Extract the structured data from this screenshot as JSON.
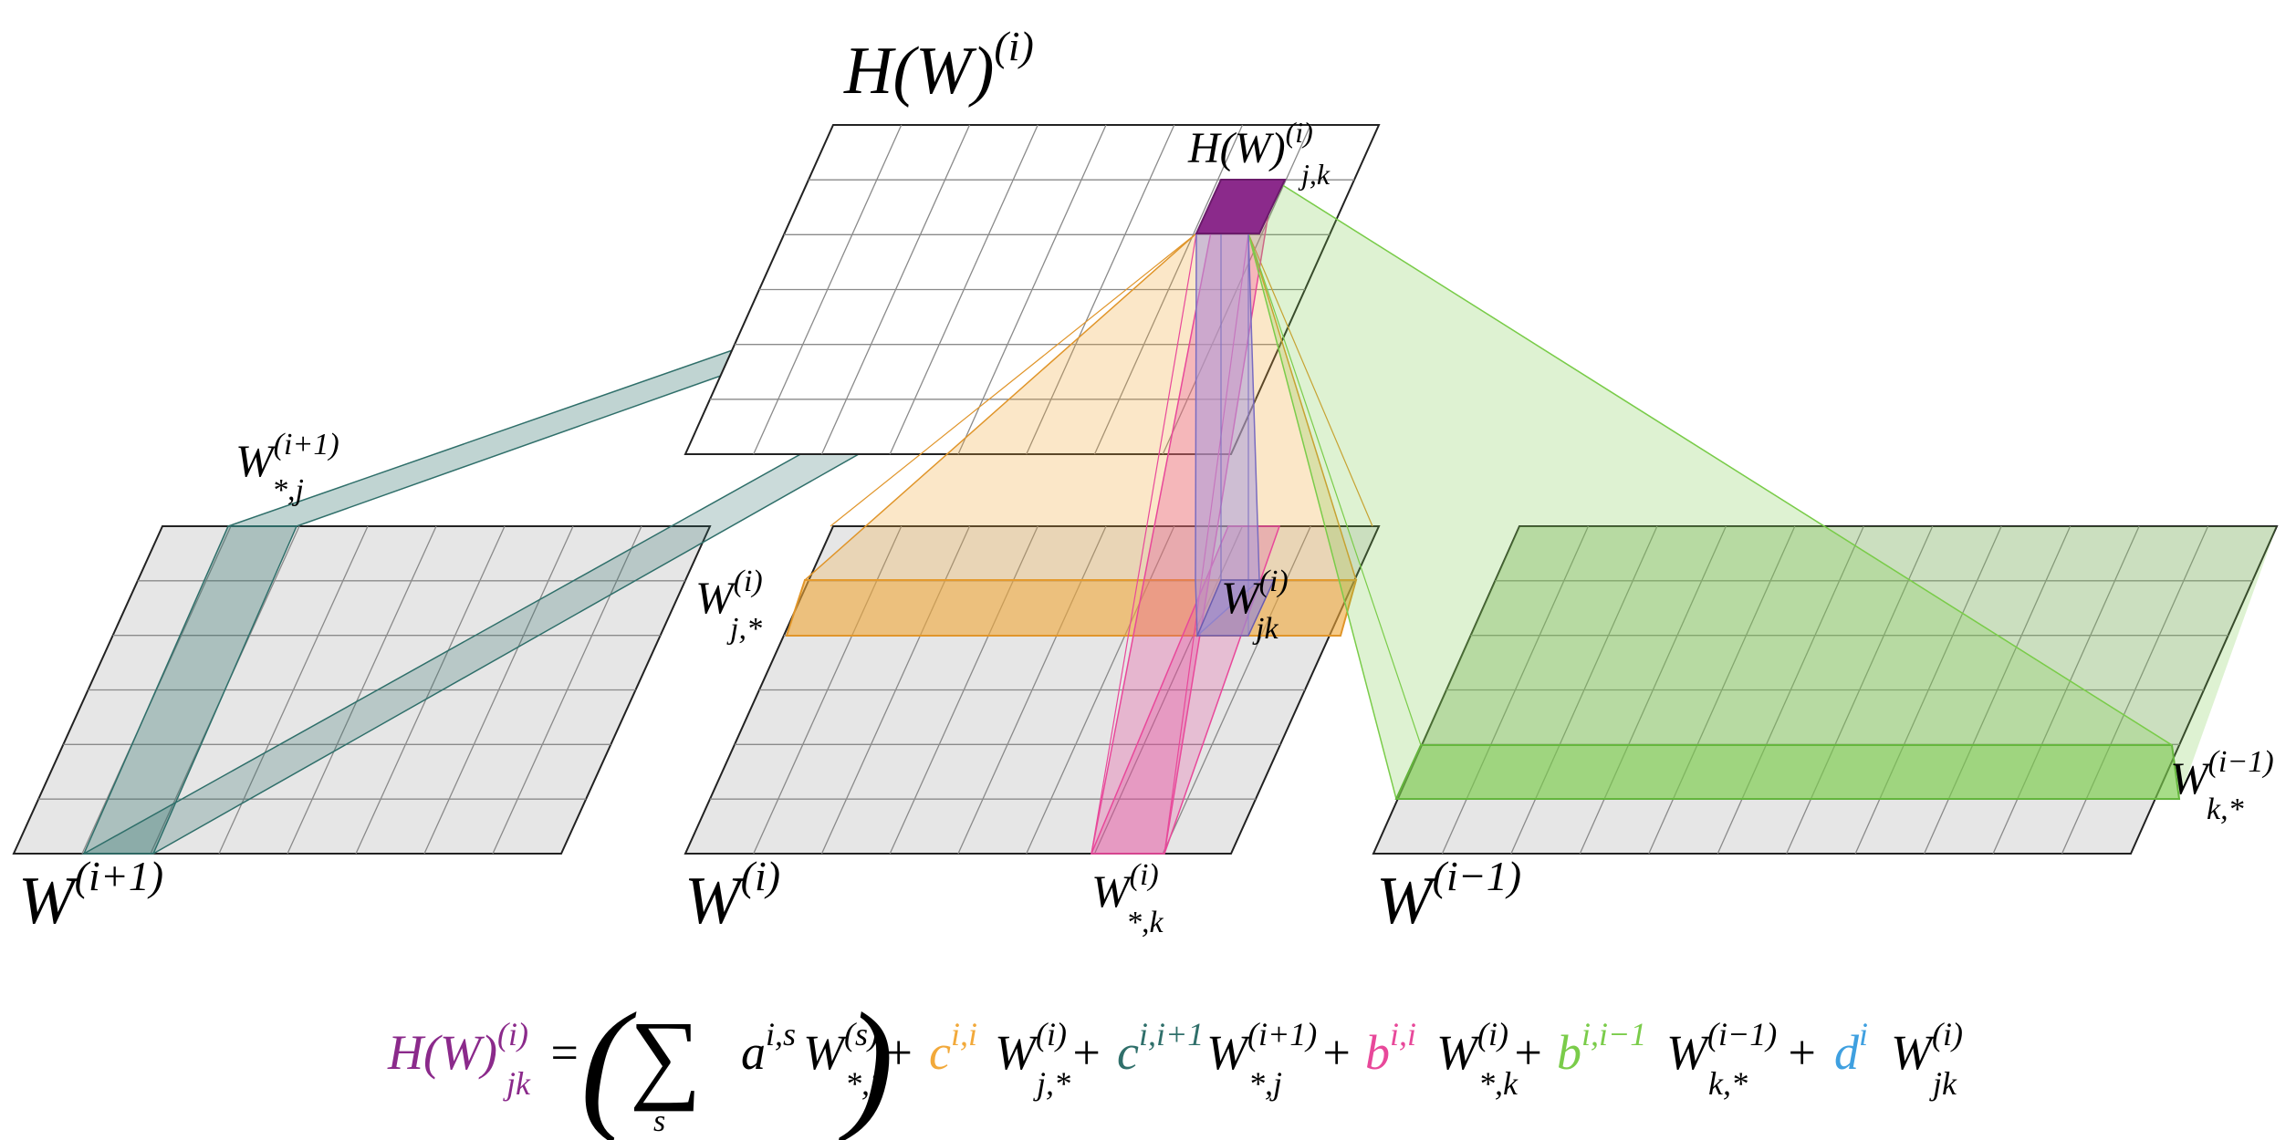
{
  "colors": {
    "grid_fill": "#e6e6e6",
    "grid_line": "#7a7a7a",
    "purple": "#8b2a8b",
    "orange": "#f2a93a",
    "teal": "#2f6f6a",
    "pink": "#e8489a",
    "green": "#7acc4a",
    "blue": "#3fa0e0",
    "lavender": "#aa9cdc"
  },
  "labels": {
    "top_matrix": {
      "base": "H(W)",
      "sup": "(i)"
    },
    "top_cell": {
      "base": "H(W)",
      "sup": "(i)",
      "sub": "j,k"
    },
    "left_matrix": {
      "base": "W",
      "sup": "(i+1)"
    },
    "mid_matrix": {
      "base": "W",
      "sup": "(i)"
    },
    "right_matrix": {
      "base": "W",
      "sup": "(i−1)"
    },
    "left_col": {
      "base": "W",
      "sup": "(i+1)",
      "sub": "*,j"
    },
    "mid_row": {
      "base": "W",
      "sup": "(i)",
      "sub": "j,*"
    },
    "mid_cell": {
      "base": "W",
      "sup": "(i)",
      "sub": "jk"
    },
    "mid_col": {
      "base": "W",
      "sup": "(i)",
      "sub": "*,k"
    },
    "right_row": {
      "base": "W",
      "sup": "(i−1)",
      "sub": "k,*"
    }
  },
  "equation": {
    "lhs": {
      "base": "H(W)",
      "sup": "(i)",
      "sub": "jk"
    },
    "equals": "=",
    "open_paren": "(",
    "close_paren": ")",
    "sigma": "∑",
    "sigma_sub": "s",
    "sum_coef": {
      "base": "a",
      "sup": "i,s"
    },
    "sum_term": {
      "base": "W",
      "sup": "(s)",
      "sub": "*,*"
    },
    "plus": "+",
    "t1_coef": {
      "base": "c",
      "sup": "i,i"
    },
    "t1_term": {
      "base": "W",
      "sup": "(i)",
      "sub": "j,*"
    },
    "t2_coef": {
      "base": "c",
      "sup": "i,i+1"
    },
    "t2_term": {
      "base": "W",
      "sup": "(i+1)",
      "sub": "*,j"
    },
    "t3_coef": {
      "base": "b",
      "sup": "i,i"
    },
    "t3_term": {
      "base": "W",
      "sup": "(i)",
      "sub": "*,k"
    },
    "t4_coef": {
      "base": "b",
      "sup": "i,i−1"
    },
    "t4_term": {
      "base": "W",
      "sup": "(i−1)",
      "sub": "k,*"
    },
    "t5_coef": {
      "base": "d",
      "sup": "i"
    },
    "t5_term": {
      "base": "W",
      "sup": "(i)",
      "sub": "jk"
    }
  }
}
